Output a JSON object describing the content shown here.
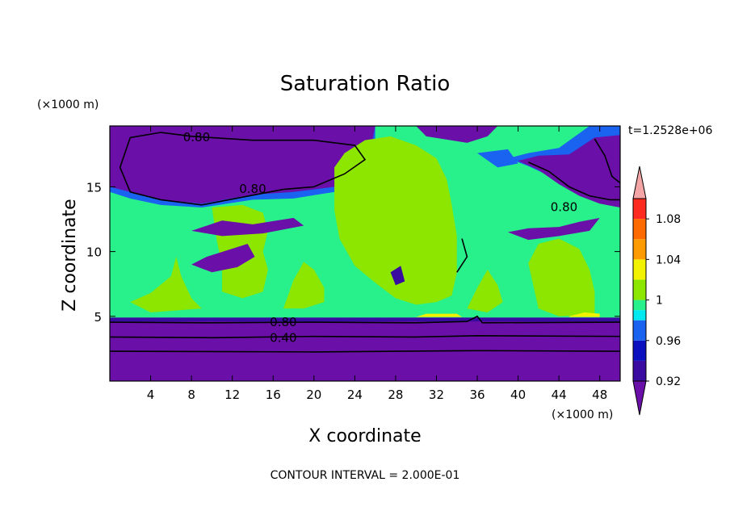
{
  "chart_data": {
    "type": "heatmap",
    "title": "Saturation Ratio",
    "xlabel": "X coordinate",
    "ylabel": "Z coordinate",
    "x_unit": "(×1000 m)",
    "y_unit": "(×1000 m)",
    "xlim": [
      0,
      50
    ],
    "ylim": [
      0,
      19.7
    ],
    "x_ticks": [
      4,
      8,
      12,
      16,
      20,
      24,
      28,
      32,
      36,
      40,
      44,
      48
    ],
    "y_ticks": [
      5,
      10,
      15
    ],
    "time_label": "t=1.2528e+06",
    "footer": "CONTOUR INTERVAL = 2.000E-01",
    "colorbar": {
      "bins": [
        {
          "lo": null,
          "hi": 0.92,
          "color": "#6a0fa8"
        },
        {
          "lo": 0.92,
          "hi": 0.94,
          "color": "#3a0ba0"
        },
        {
          "lo": 0.94,
          "hi": 0.96,
          "color": "#0a10c0"
        },
        {
          "lo": 0.96,
          "hi": 0.98,
          "color": "#1a62f0"
        },
        {
          "lo": 0.98,
          "hi": 0.99,
          "color": "#00e8f0"
        },
        {
          "lo": 0.99,
          "hi": 1.0,
          "color": "#28f08a"
        },
        {
          "lo": 1.0,
          "hi": 1.02,
          "color": "#8ce600"
        },
        {
          "lo": 1.02,
          "hi": 1.04,
          "color": "#f2f200"
        },
        {
          "lo": 1.04,
          "hi": 1.06,
          "color": "#ff9a00"
        },
        {
          "lo": 1.06,
          "hi": 1.08,
          "color": "#ff6a00"
        },
        {
          "lo": 1.08,
          "hi": 1.1,
          "color": "#ff2a20"
        },
        {
          "lo": 1.1,
          "hi": null,
          "color": "#f4a6a6"
        }
      ],
      "tick_labels": [
        {
          "value": 0.92,
          "label": "0.92"
        },
        {
          "value": 0.96,
          "label": "0.96"
        },
        {
          "value": 1.0,
          "label": "1"
        },
        {
          "value": 1.04,
          "label": "1.04"
        },
        {
          "value": 1.08,
          "label": "1.08"
        }
      ]
    },
    "contour_labels": [
      {
        "x": 8.5,
        "z": 18.9,
        "label": "0.80"
      },
      {
        "x": 14,
        "z": 14.9,
        "label": "0.80"
      },
      {
        "x": 44.5,
        "z": 13.5,
        "label": "0.80"
      },
      {
        "x": 17,
        "z": 4.6,
        "label": "0.80"
      },
      {
        "x": 17,
        "z": 3.4,
        "label": "0.40"
      }
    ],
    "regions": [
      {
        "band": "below",
        "z": [
          0,
          4.9
        ],
        "description_color": "#6a0fa8"
      },
      {
        "band": "saturated",
        "z": [
          4.9,
          19.7
        ],
        "description_color": "#28f08a"
      }
    ]
  }
}
